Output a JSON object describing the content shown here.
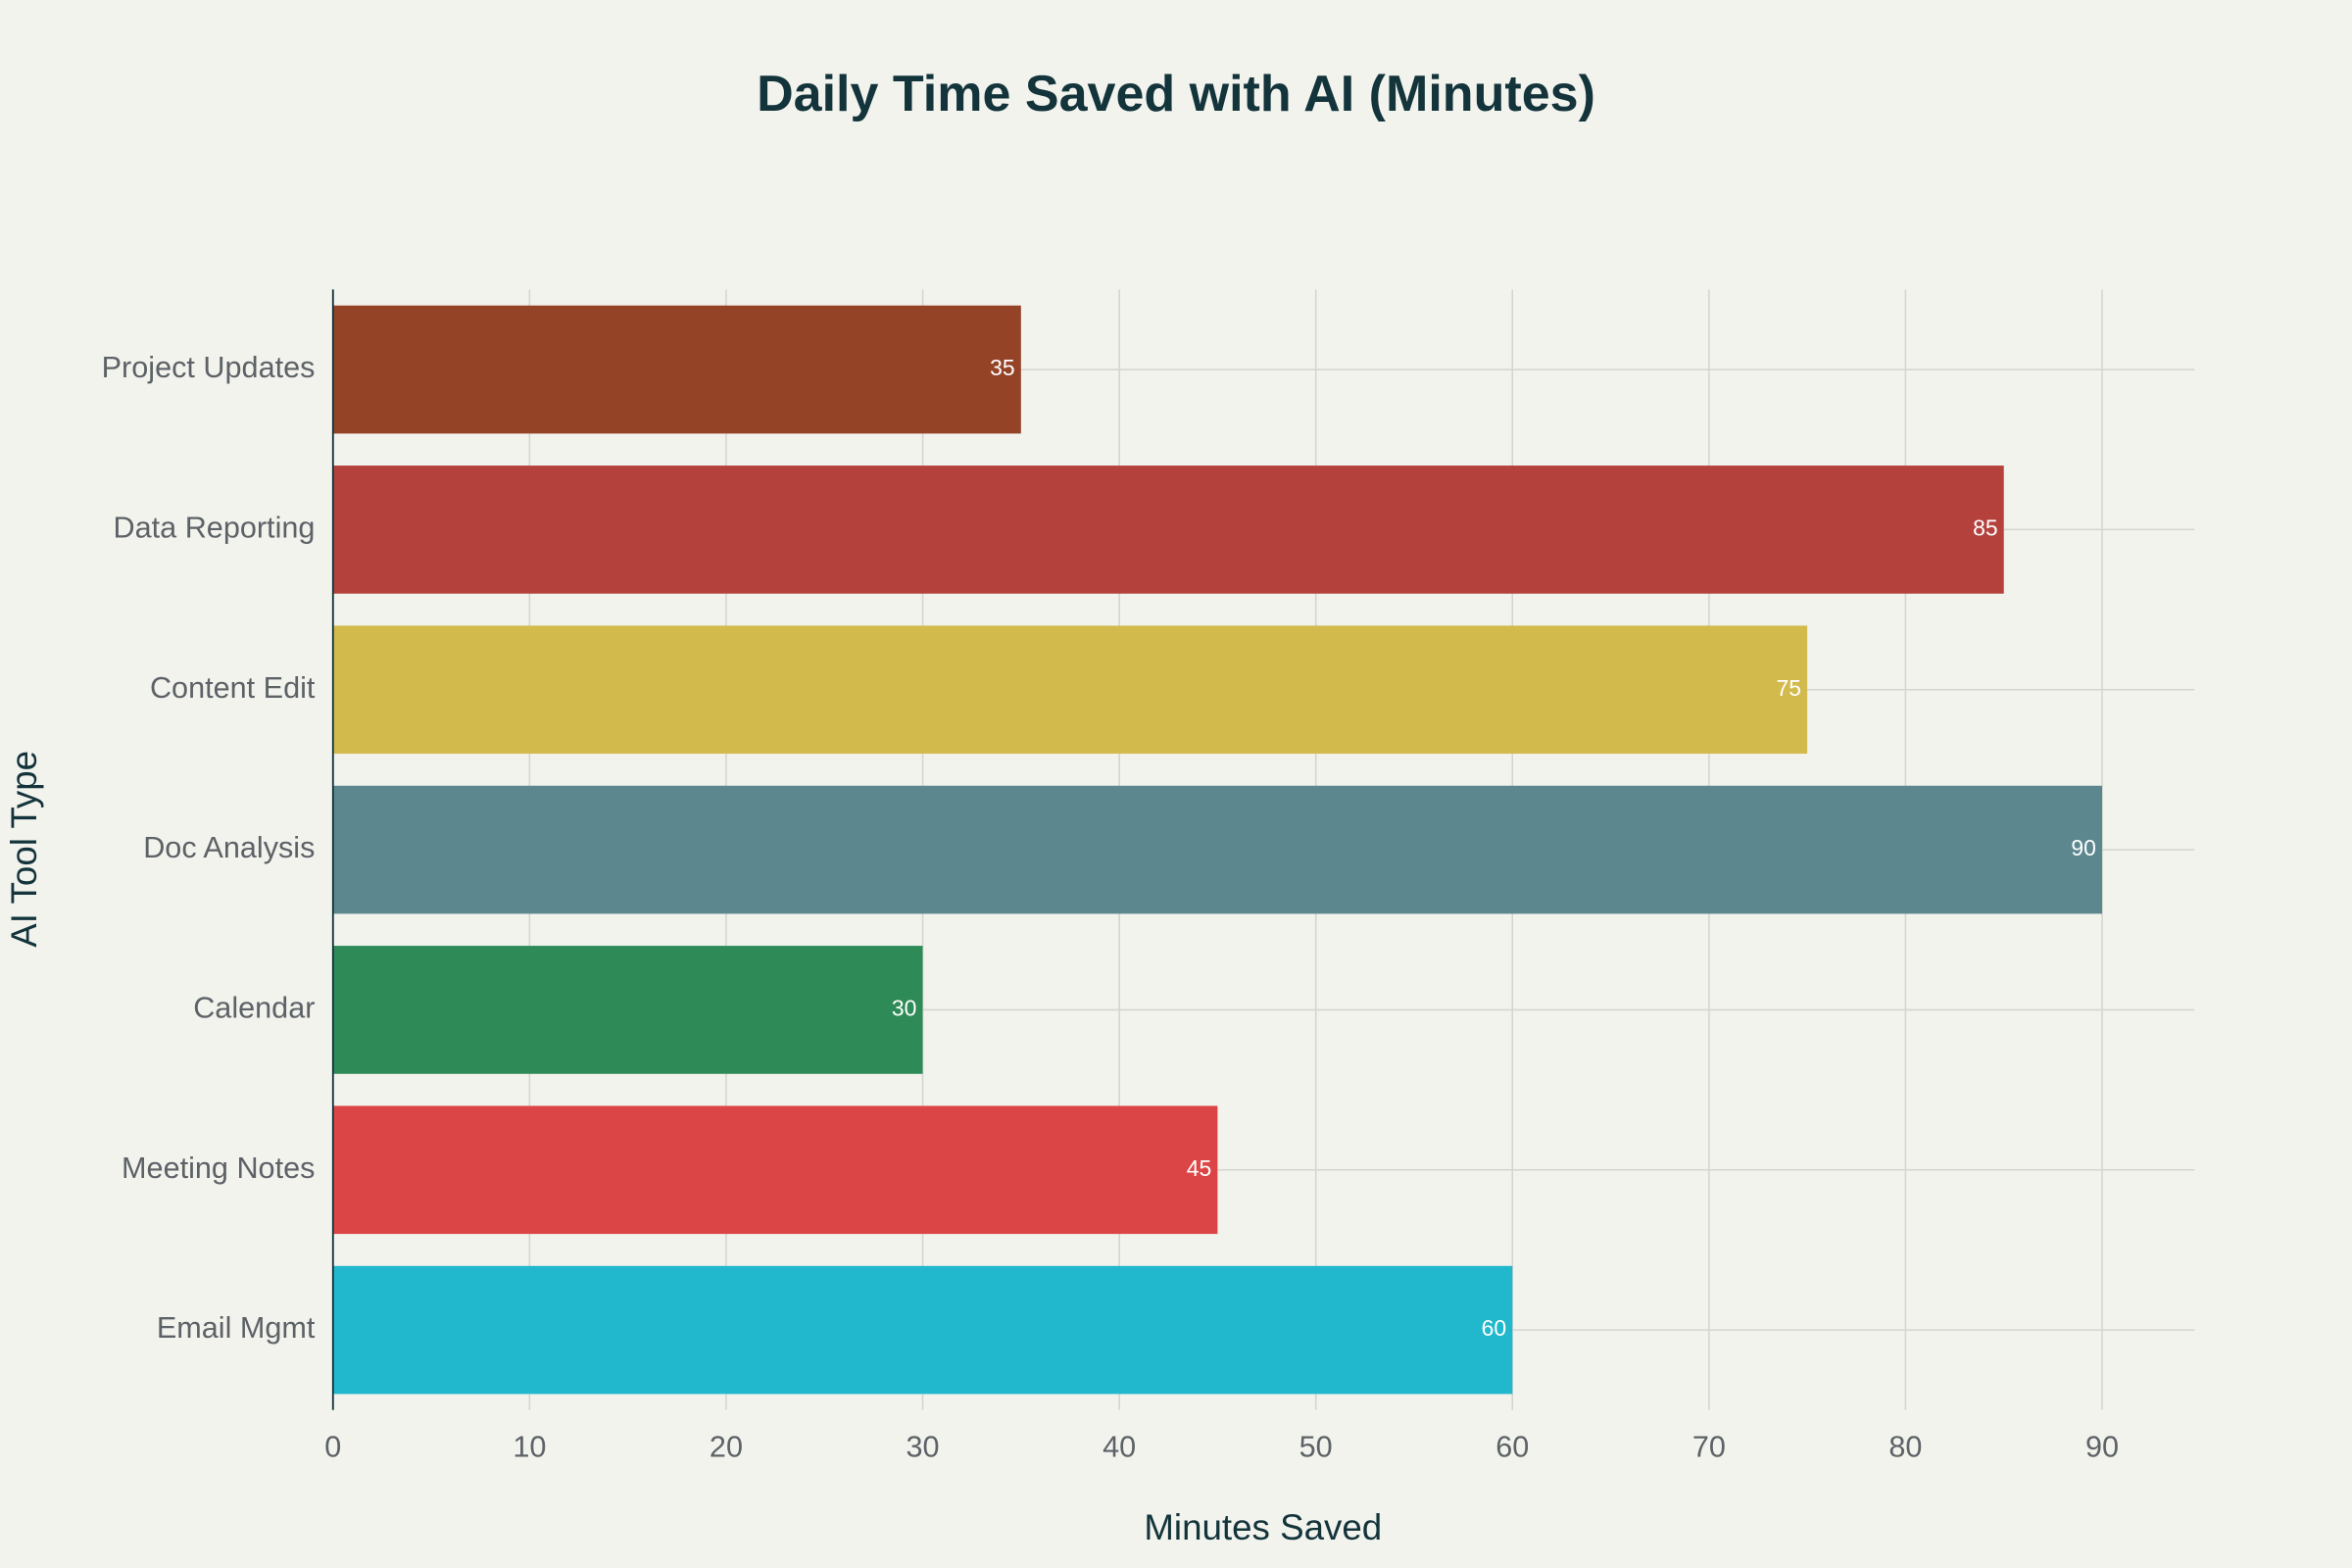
{
  "chart_data": {
    "type": "bar",
    "orientation": "horizontal",
    "title": "Daily Time Saved with AI (Minutes)",
    "x_label": "Minutes Saved",
    "y_label": "AI Tool Type",
    "categories": [
      "Email Mgmt",
      "Meeting Notes",
      "Calendar",
      "Doc Analysis",
      "Content Edit",
      "Data Reporting",
      "Project Updates"
    ],
    "values": [
      60,
      45,
      30,
      90,
      75,
      85,
      35
    ],
    "colors": [
      "#21b7cc",
      "#db4545",
      "#2e8b57",
      "#5d878f",
      "#d2ba4c",
      "#b4413c",
      "#944327"
    ],
    "xlim": [
      0,
      94.7
    ],
    "xticks": [
      0,
      10,
      20,
      30,
      40,
      50,
      60,
      70,
      80,
      90
    ],
    "grid": true
  }
}
